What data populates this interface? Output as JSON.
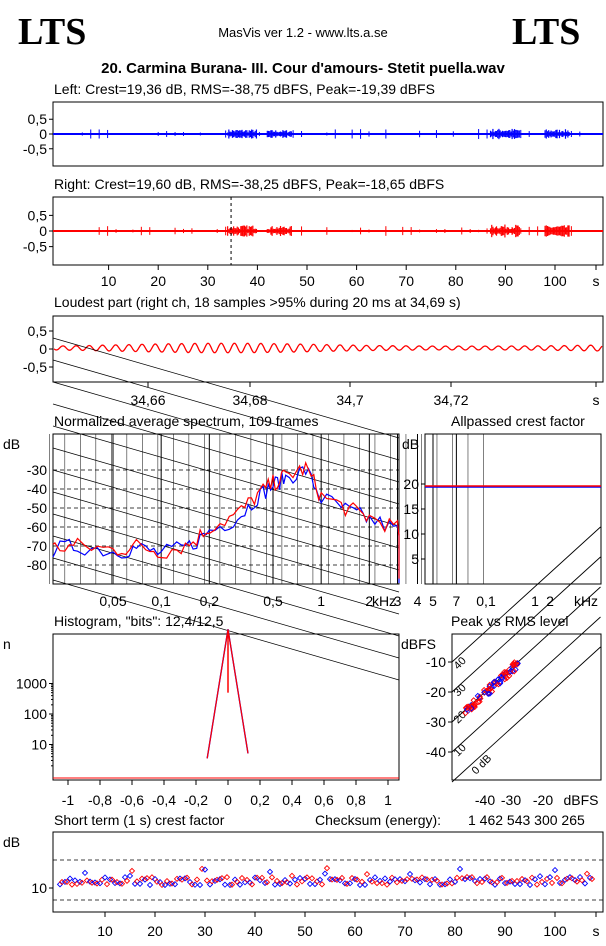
{
  "header": {
    "logo_left": "LTS",
    "logo_right": "LTS",
    "app": "MasVis ver 1.2 - www.lts.a.se",
    "file": "20. Carmina Burana- III. Cour d'amours- Stetit puella.wav"
  },
  "colors": {
    "left": "#0000ff",
    "right": "#ff0000",
    "grid": "#000000"
  },
  "chart_data": [
    {
      "type": "line",
      "title": "Left: Crest=19,36 dB, RMS=-38,75 dBFS, Peak=-19,39 dBFS",
      "channel": "left",
      "yticks": [
        "0,5",
        "0",
        "-0,5"
      ],
      "ylim": [
        -1,
        1
      ],
      "xlim": [
        0,
        109
      ],
      "bursts": [
        [
          34,
          40,
          0.07
        ],
        [
          42,
          47,
          0.06
        ],
        [
          87,
          93,
          0.08
        ],
        [
          98,
          103,
          0.07
        ]
      ]
    },
    {
      "type": "line",
      "title": "Right: Crest=19,60 dB, RMS=-38,25 dBFS, Peak=-18,65 dBFS",
      "channel": "right",
      "yticks": [
        "0,5",
        "0",
        "-0,5"
      ],
      "ylim": [
        -1,
        1
      ],
      "xlim": [
        0,
        109
      ],
      "marker_x": 34.69,
      "bursts": [
        [
          34,
          40,
          0.08
        ],
        [
          42,
          47,
          0.07
        ],
        [
          87,
          93,
          0.09
        ],
        [
          98,
          103,
          0.08
        ]
      ],
      "xticks": [
        "10",
        "20",
        "30",
        "40",
        "50",
        "60",
        "70",
        "80",
        "90",
        "100",
        "s"
      ]
    },
    {
      "type": "line",
      "title": "Loudest part (right ch, 18 samples >95% during 20 ms at 34,69 s)",
      "channel": "right",
      "yticks": [
        "0,5",
        "0",
        "-0,5"
      ],
      "xticks": [
        "34,66",
        "34,68",
        "34,7",
        "34,72",
        "s"
      ],
      "xlim": [
        34.648,
        34.74
      ]
    },
    {
      "type": "line",
      "title": "Normalized average spectrum, 109 frames",
      "ylabel": "dB",
      "yticks": [
        "-30",
        "-40",
        "-50",
        "-60",
        "-70",
        "-80"
      ],
      "xticks": [
        "0,05",
        "0,1",
        "0,2",
        "0,5",
        "1",
        "2",
        "3",
        "4",
        "5",
        "7",
        "kHz"
      ],
      "scale": "log",
      "series": [
        {
          "channel": "left",
          "x": [
            0.02,
            0.03,
            0.05,
            0.07,
            0.1,
            0.15,
            0.2,
            0.3,
            0.4,
            0.5,
            0.6,
            0.8,
            1,
            1.5,
            2,
            3,
            4,
            5,
            7,
            10
          ],
          "y": [
            -72,
            -70,
            -73,
            -71,
            -74,
            -70,
            -62,
            -55,
            -44,
            -38,
            -34,
            -30,
            -45,
            -52,
            -56,
            -62,
            -75,
            -80,
            -83,
            -88
          ]
        },
        {
          "channel": "right",
          "x": [
            0.02,
            0.03,
            0.05,
            0.07,
            0.1,
            0.15,
            0.2,
            0.3,
            0.4,
            0.5,
            0.6,
            0.8,
            1,
            1.5,
            2,
            3,
            4,
            5,
            7,
            10
          ],
          "y": [
            -71,
            -70,
            -72,
            -70,
            -73,
            -69,
            -60,
            -53,
            -43,
            -37,
            -33,
            -29,
            -44,
            -51,
            -55,
            -61,
            -74,
            -79,
            -82,
            -86
          ]
        }
      ]
    },
    {
      "type": "line",
      "title": "Allpassed crest factor",
      "ylabel": "dB",
      "yticks": [
        "20",
        "15",
        "10",
        "5"
      ],
      "xticks": [
        "0,1",
        "1",
        "2",
        "kHz"
      ],
      "series": [
        {
          "channel": "left",
          "y": 19.4
        },
        {
          "channel": "right",
          "y": 19.6
        }
      ]
    },
    {
      "type": "line",
      "title": "Histogram, \"bits\": 12,4/12,5",
      "ylabel": "n",
      "yticks": [
        "1000",
        "100",
        "10"
      ],
      "xticks": [
        "-1",
        "-0,8",
        "-0,6",
        "-0,4",
        "-0,2",
        "0",
        "0,2",
        "0,4",
        "0,6",
        "0,8",
        "1"
      ],
      "scale": "log"
    },
    {
      "type": "scatter",
      "title": "Peak vs RMS level",
      "ylabel": "dBFS",
      "yticks": [
        "-10",
        "-20",
        "-30",
        "-40"
      ],
      "xticks": [
        "-40",
        "-30",
        "-20",
        "dBFS"
      ],
      "diagonal_labels": [
        "40",
        "30",
        "20",
        "10",
        "0 dB"
      ]
    },
    {
      "type": "scatter",
      "title": "Short term (1 s) crest factor",
      "checksum_label": "Checksum (energy):",
      "checksum_value": "1 462 543 300 265",
      "ylabel": "dB",
      "yticks": [
        "10"
      ],
      "xticks": [
        "10",
        "20",
        "30",
        "40",
        "50",
        "60",
        "70",
        "80",
        "90",
        "100",
        "s"
      ]
    }
  ]
}
